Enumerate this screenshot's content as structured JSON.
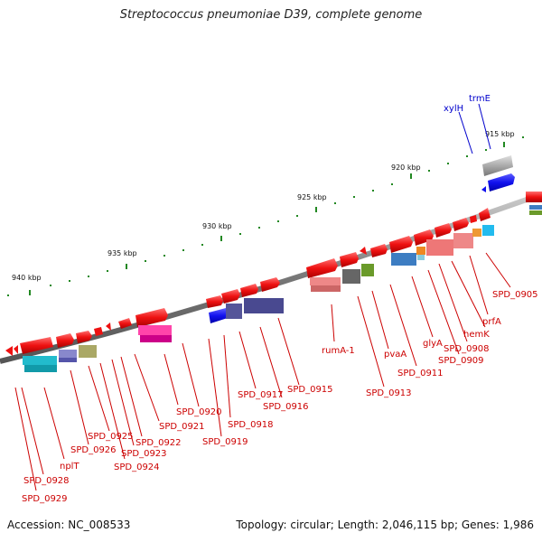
{
  "title": "Streptococcus pneumoniae D39, complete genome",
  "footer": {
    "accession": "Accession: NC_008533",
    "summary": "Topology: circular; Length: 2,046,115 bp; Genes: 1,986"
  },
  "scale_labels": [
    "940 kbp",
    "935 kbp",
    "930 kbp",
    "925 kbp",
    "920 kbp",
    "915 kbp"
  ],
  "gene_labels": [
    "SPD_0929",
    "SPD_0928",
    "nplT",
    "SPD_0926",
    "SPD_0925",
    "SPD_0924",
    "SPD_0923",
    "SPD_0922",
    "SPD_0921",
    "SPD_0920",
    "SPD_0919",
    "SPD_0918",
    "SPD_0917",
    "SPD_0916",
    "SPD_0915",
    "rumA-1",
    "SPD_0913",
    "pvaA",
    "SPD_0911",
    "glyA",
    "SPD_0909",
    "SPD_0908",
    "hemK",
    "prfA",
    "SPD_0905"
  ],
  "top_gene_labels": [
    "xylH",
    "trmE"
  ],
  "colors": {
    "forward_gene": "#ee1111",
    "reverse_gene": "#1111ee",
    "backbone": "#888888",
    "tick": "#228822",
    "label": "#cc0000",
    "label_blue": "#0000cc"
  }
}
